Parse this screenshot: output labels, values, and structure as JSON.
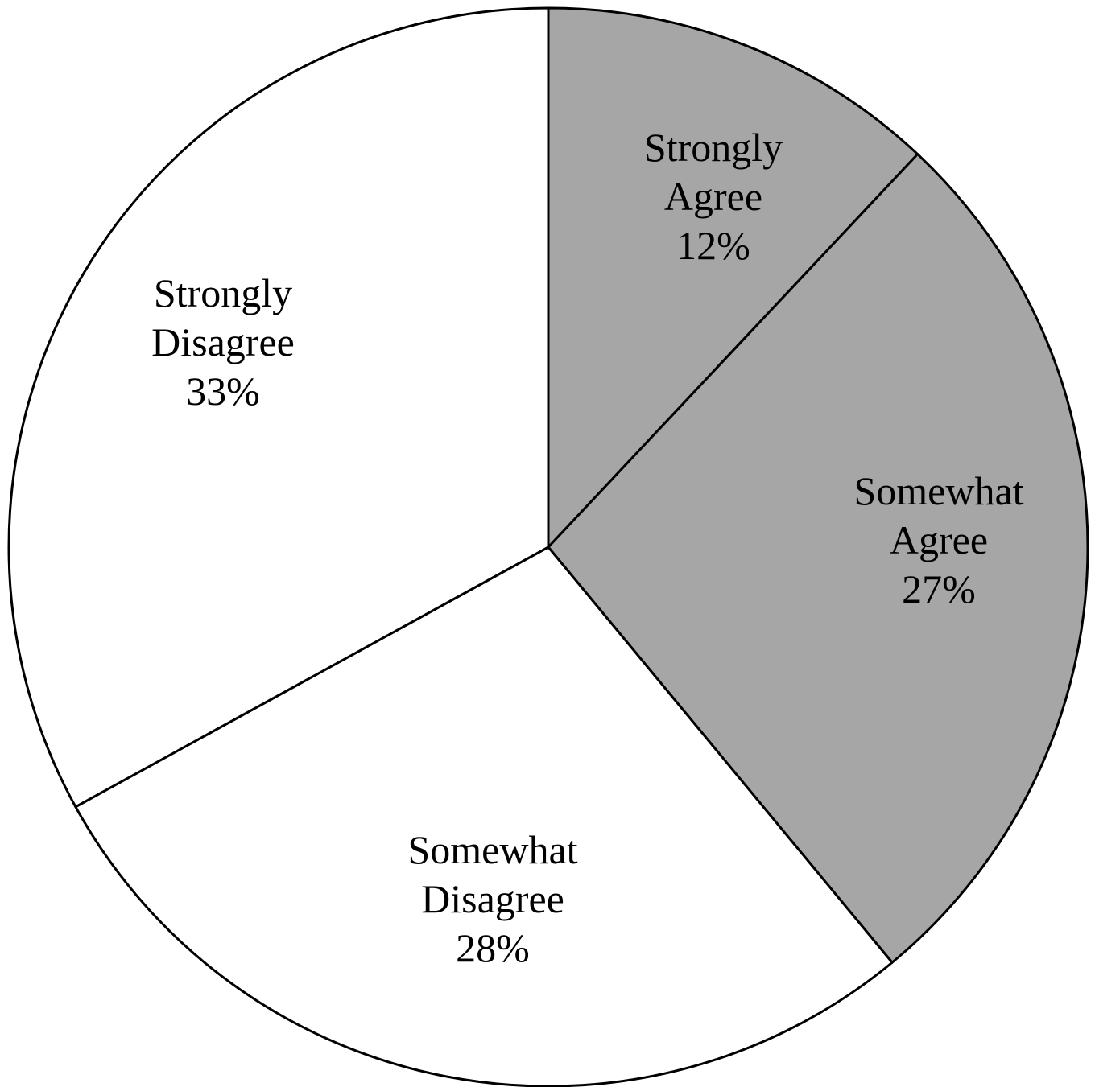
{
  "chart_data": {
    "type": "pie",
    "start": "top",
    "direction": "clockwise",
    "slices": [
      {
        "label_lines": [
          "Strongly",
          "Agree"
        ],
        "value_label": "12%",
        "value": 12,
        "color": "#a6a6a6"
      },
      {
        "label_lines": [
          "Somewhat",
          "Agree"
        ],
        "value_label": "27%",
        "value": 27,
        "color": "#a6a6a6"
      },
      {
        "label_lines": [
          "Somewhat",
          "Disagree"
        ],
        "value_label": "28%",
        "value": 28,
        "color": "#ffffff"
      },
      {
        "label_lines": [
          "Strongly",
          "Disagree"
        ],
        "value_label": "33%",
        "value": 33,
        "color": "#ffffff"
      }
    ]
  }
}
